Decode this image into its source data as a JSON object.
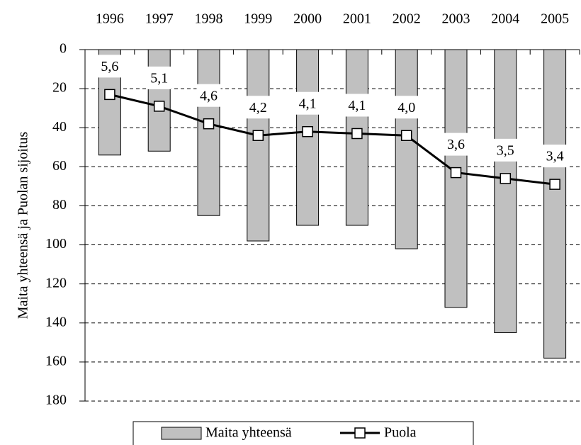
{
  "chart_data": {
    "type": "bar_line",
    "y_axis_label": "Maita yhteensä ja Puolan sijoitus",
    "categories": [
      "1996",
      "1997",
      "1998",
      "1999",
      "2000",
      "2001",
      "2002",
      "2003",
      "2004",
      "2005"
    ],
    "ylim": [
      0,
      180
    ],
    "yticks": [
      0,
      20,
      40,
      60,
      80,
      100,
      120,
      140,
      160,
      180
    ],
    "y_inverted": true,
    "grid": true,
    "legend": "bottom",
    "series": [
      {
        "name": "Maita yhteensä",
        "type": "bar",
        "color": "#c0c0c0",
        "values": [
          54,
          52,
          85,
          98,
          90,
          90,
          102,
          132,
          145,
          158
        ]
      },
      {
        "name": "Puola",
        "type": "line",
        "color": "#000000",
        "values": [
          23,
          29,
          38,
          44,
          42,
          43,
          44,
          63,
          66,
          69
        ],
        "annotations": [
          "5,6",
          "5,1",
          "4,6",
          "4,2",
          "4,1",
          "4,1",
          "4,0",
          "3,6",
          "3,5",
          "3,4"
        ]
      }
    ]
  }
}
